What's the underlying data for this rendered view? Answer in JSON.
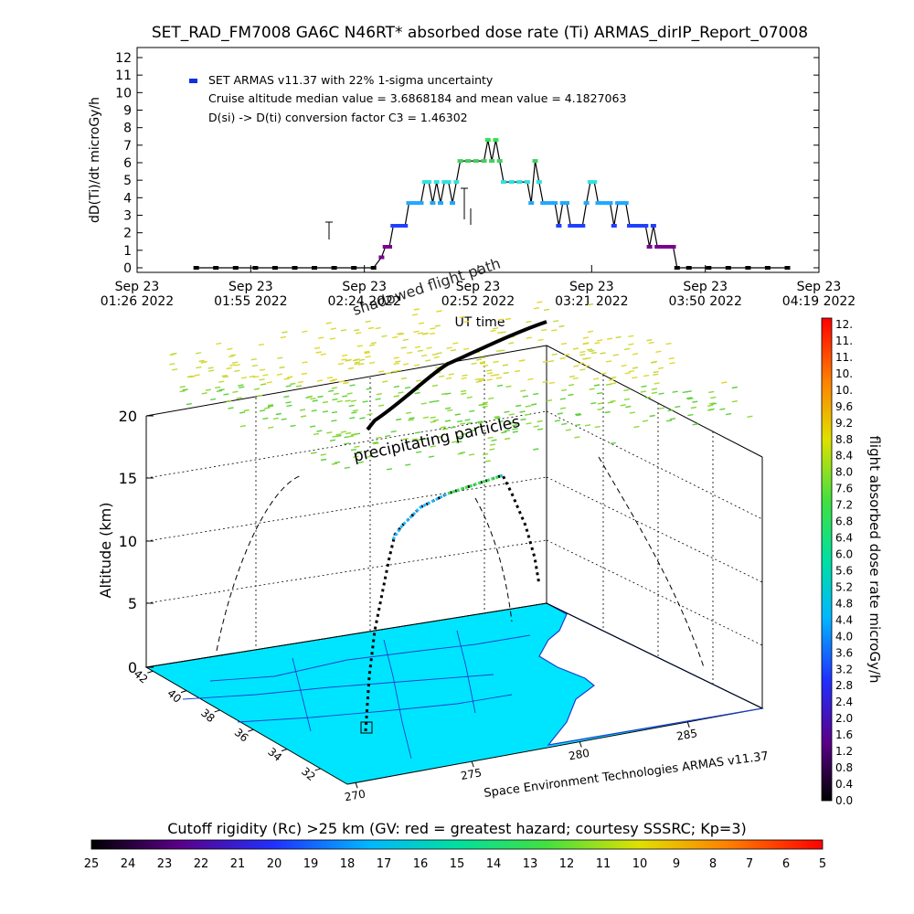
{
  "chart_data": [
    {
      "type": "line",
      "title": "SET_RAD_FM7008  GA6C N46RT* absorbed dose rate (Ti) ARMAS_dirIP_Report_07008",
      "ylabel": "dD(Ti)/dt microGy/h",
      "xlabel": "UT time",
      "ylim": [
        0,
        12
      ],
      "yticks": [
        "0",
        "1",
        "2",
        "3",
        "4",
        "5",
        "6",
        "7",
        "8",
        "9",
        "10",
        "11",
        "12"
      ],
      "xticks": [
        {
          "date": "Sep 23",
          "time": "01:26 2022"
        },
        {
          "date": "Sep 23",
          "time": "01:55 2022"
        },
        {
          "date": "Sep 23",
          "time": "02:24 2022"
        },
        {
          "date": "Sep 23",
          "time": "02:52 2022"
        },
        {
          "date": "Sep 23",
          "time": "03:21 2022"
        },
        {
          "date": "Sep 23",
          "time": "03:50 2022"
        },
        {
          "date": "Sep 23",
          "time": "04:19 2022"
        }
      ],
      "xlim_minutes_after_0126": [
        0,
        173
      ],
      "legend": {
        "placement": "top-left",
        "series_label": "SET ARMAS v11.37 with 22% 1-sigma uncertainty",
        "line2": "Cruise altitude median value = 3.6868184 and mean value = 4.1827063",
        "line3": "D(si) -> D(ti) conversion factor C3 = 1.46302"
      },
      "series": [
        {
          "name": "SET ARMAS v11.37 with 22% 1-sigma uncertainty",
          "points": [
            [
              15,
              0
            ],
            [
              20,
              0
            ],
            [
              25,
              0
            ],
            [
              30,
              0
            ],
            [
              35,
              0
            ],
            [
              40,
              0
            ],
            [
              45,
              0
            ],
            [
              50,
              0
            ],
            [
              55,
              0
            ],
            [
              60,
              0
            ],
            [
              62,
              0.6
            ],
            [
              63,
              1.2
            ],
            [
              64,
              1.2
            ],
            [
              65,
              2.4
            ],
            [
              66,
              2.4
            ],
            [
              67,
              2.4
            ],
            [
              68,
              2.4
            ],
            [
              69,
              3.7
            ],
            [
              70,
              3.7
            ],
            [
              71,
              3.7
            ],
            [
              72,
              3.7
            ],
            [
              73,
              4.9
            ],
            [
              74,
              4.9
            ],
            [
              75,
              3.7
            ],
            [
              76,
              4.9
            ],
            [
              77,
              3.7
            ],
            [
              78,
              4.9
            ],
            [
              79,
              4.9
            ],
            [
              80,
              3.7
            ],
            [
              81,
              4.9
            ],
            [
              82,
              6.1
            ],
            [
              84,
              6.1
            ],
            [
              86,
              6.1
            ],
            [
              88,
              6.1
            ],
            [
              89,
              7.3
            ],
            [
              90,
              6.1
            ],
            [
              91,
              7.3
            ],
            [
              92,
              6.1
            ],
            [
              93,
              4.9
            ],
            [
              95,
              4.9
            ],
            [
              97,
              4.9
            ],
            [
              99,
              4.9
            ],
            [
              100,
              3.7
            ],
            [
              101,
              6.1
            ],
            [
              102,
              4.9
            ],
            [
              103,
              3.7
            ],
            [
              104,
              3.7
            ],
            [
              105,
              3.7
            ],
            [
              106,
              3.7
            ],
            [
              107,
              2.4
            ],
            [
              108,
              3.7
            ],
            [
              109,
              3.7
            ],
            [
              110,
              2.4
            ],
            [
              111,
              2.4
            ],
            [
              112,
              2.4
            ],
            [
              113,
              2.4
            ],
            [
              114,
              3.7
            ],
            [
              115,
              4.9
            ],
            [
              116,
              4.9
            ],
            [
              117,
              3.7
            ],
            [
              118,
              3.7
            ],
            [
              119,
              3.7
            ],
            [
              120,
              3.7
            ],
            [
              121,
              2.4
            ],
            [
              122,
              3.7
            ],
            [
              123,
              3.7
            ],
            [
              124,
              3.7
            ],
            [
              125,
              2.4
            ],
            [
              126,
              2.4
            ],
            [
              127,
              2.4
            ],
            [
              128,
              2.4
            ],
            [
              129,
              2.4
            ],
            [
              130,
              1.2
            ],
            [
              131,
              2.4
            ],
            [
              132,
              1.2
            ],
            [
              133,
              1.2
            ],
            [
              134,
              1.2
            ],
            [
              135,
              1.2
            ],
            [
              136,
              1.2
            ],
            [
              137,
              0
            ],
            [
              140,
              0
            ],
            [
              145,
              0
            ],
            [
              150,
              0
            ],
            [
              155,
              0
            ],
            [
              160,
              0
            ],
            [
              165,
              0
            ]
          ]
        }
      ]
    },
    {
      "type": "scatter",
      "ylabel": "Altitude (km)",
      "zticks": [
        "0",
        "5",
        "10",
        "15",
        "20"
      ],
      "lat_ticks": [
        "42",
        "40",
        "38",
        "36",
        "34",
        "32"
      ],
      "lon_ticks": [
        "270",
        "275",
        "280",
        "285"
      ],
      "annotations": [
        "precipitating particles",
        "shadowed flight path"
      ],
      "credit": "Space Environment Technologies ARMAS v11.37",
      "colorbar": {
        "label": "flight absorbed dose rate microGy/h",
        "ticks": [
          "12.",
          "11.",
          "11.",
          "10.",
          "10.",
          "9.6",
          "9.2",
          "8.8",
          "8.4",
          "8.0",
          "7.6",
          "7.2",
          "6.8",
          "6.4",
          "6.0",
          "5.6",
          "5.2",
          "4.8",
          "4.4",
          "4.0",
          "3.6",
          "3.2",
          "2.8",
          "2.4",
          "2.0",
          "1.6",
          "1.2",
          "0.8",
          "0.4",
          "0.0"
        ]
      },
      "rigidity_bar": {
        "title": "Cutoff rigidity (Rc) >25 km (GV: red = greatest hazard; courtesy SSSRC; Kp=3)",
        "ticks": [
          "25",
          "24",
          "23",
          "22",
          "21",
          "20",
          "19",
          "18",
          "17",
          "16",
          "15",
          "14",
          "13",
          "12",
          "11",
          "10",
          "9",
          "8",
          "7",
          "6",
          "5"
        ]
      }
    }
  ]
}
